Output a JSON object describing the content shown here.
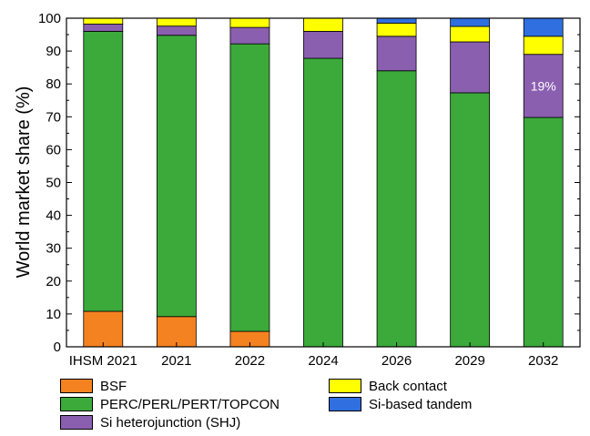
{
  "chart_data": {
    "type": "bar",
    "stacked": true,
    "categories": [
      "IHSM 2021",
      "2021",
      "2022",
      "2024",
      "2026",
      "2029",
      "2032"
    ],
    "ylabel": "World market share (%)",
    "xlabel": "",
    "ylim": [
      0,
      100
    ],
    "yticks": [
      0,
      10,
      20,
      30,
      40,
      50,
      60,
      70,
      80,
      90,
      100
    ],
    "legend_position": "bottom",
    "series": [
      {
        "name": "BSF",
        "color": "#F58220",
        "values": [
          10.8,
          9.2,
          4.7,
          0,
          0,
          0,
          0
        ]
      },
      {
        "name": "PERC/PERL/PERT/TOPCON",
        "color": "#3BAA3B",
        "values": [
          85.2,
          85.6,
          87.5,
          87.8,
          84.0,
          77.3,
          69.8
        ]
      },
      {
        "name": "Si heterojunction (SHJ)",
        "color": "#8B5FB0",
        "values": [
          2.2,
          2.8,
          5.0,
          8.2,
          10.5,
          15.5,
          19.2
        ]
      },
      {
        "name": "Back contact",
        "color": "#FFFF00",
        "values": [
          1.8,
          2.4,
          2.8,
          4.0,
          4.0,
          4.7,
          5.5
        ]
      },
      {
        "name": "Si-based tandem",
        "color": "#2F6FE0",
        "values": [
          0,
          0,
          0,
          0,
          1.5,
          2.5,
          5.5
        ]
      }
    ],
    "annotations": [
      {
        "category": "2032",
        "series": "Si heterojunction (SHJ)",
        "text": "19%",
        "color": "#ffffff"
      }
    ]
  }
}
